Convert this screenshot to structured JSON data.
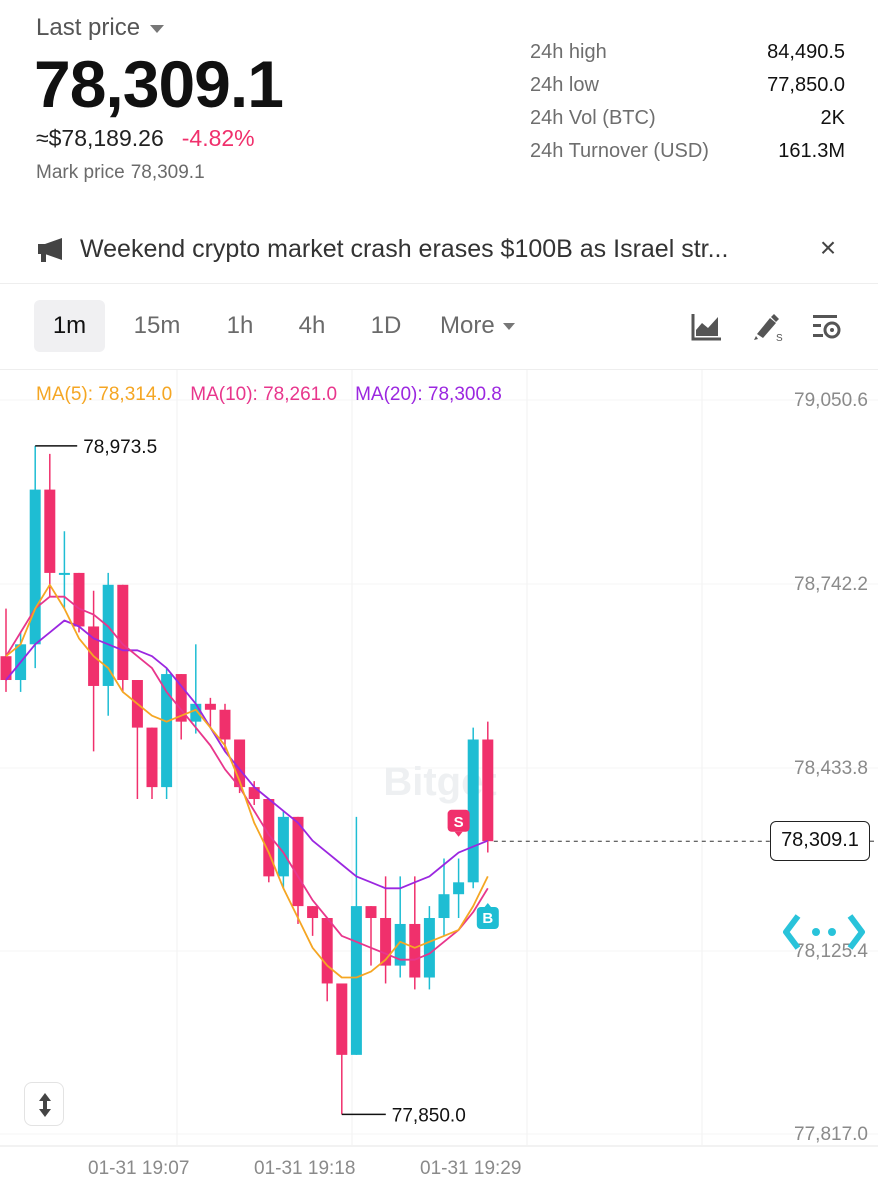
{
  "header": {
    "last_price_label": "Last price",
    "last_price": "78,309.1",
    "usd_approx": "≈$78,189.26",
    "change_pct": "-4.82%",
    "mark_price_label": "Mark price",
    "mark_price": "78,309.1"
  },
  "stats": [
    {
      "label": "24h high",
      "value": "84,490.5"
    },
    {
      "label": "24h low",
      "value": "77,850.0"
    },
    {
      "label": "24h Vol (BTC)",
      "value": "2K"
    },
    {
      "label": "24h Turnover (USD)",
      "value": "161.3M"
    }
  ],
  "news": {
    "icon": "megaphone-icon",
    "text": "Weekend crypto market crash erases $100B as Israel str...",
    "close_icon": "close-icon"
  },
  "intervals": {
    "items": [
      "1m",
      "15m",
      "1h",
      "4h",
      "1D"
    ],
    "active": "1m",
    "more_label": "More"
  },
  "tools": [
    "chart-type-icon",
    "drawing-tool-icon",
    "indicator-settings-icon"
  ],
  "ma_legend": {
    "ma5": "MA(5): 78,314.0",
    "ma10": "MA(10): 78,261.0",
    "ma20": "MA(20): 78,300.8"
  },
  "chart": {
    "high_marker": "78,973.5",
    "low_marker": "77,850.0",
    "current_price_tag": "78,309.1",
    "sell_marker": "S",
    "buy_marker": "B",
    "watermark": "Bitget",
    "y_axis_labels": [
      "79,050.6",
      "78,742.2",
      "78,433.8",
      "78,125.4",
      "77,817.0"
    ],
    "x_axis_labels": [
      "01-31 19:07",
      "01-31 19:18",
      "01-31 19:29"
    ]
  },
  "colors": {
    "up": "#1ebdd3",
    "down": "#f0306c",
    "ma5": "#f5a623",
    "ma10": "#e8368c",
    "ma20": "#9b27e0"
  },
  "chart_data": {
    "type": "candlestick",
    "ylim": [
      77817.0,
      79050.6
    ],
    "candles": [
      {
        "o": 78620,
        "h": 78700,
        "l": 78560,
        "c": 78580
      },
      {
        "o": 78580,
        "h": 78660,
        "l": 78560,
        "c": 78640
      },
      {
        "o": 78640,
        "h": 78973.5,
        "l": 78600,
        "c": 78900
      },
      {
        "o": 78900,
        "h": 78960,
        "l": 78720,
        "c": 78760
      },
      {
        "o": 78760,
        "h": 78830,
        "l": 78700,
        "c": 78760
      },
      {
        "o": 78760,
        "h": 78760,
        "l": 78660,
        "c": 78670
      },
      {
        "o": 78670,
        "h": 78730,
        "l": 78460,
        "c": 78570
      },
      {
        "o": 78570,
        "h": 78760,
        "l": 78520,
        "c": 78740
      },
      {
        "o": 78740,
        "h": 78740,
        "l": 78560,
        "c": 78580
      },
      {
        "o": 78580,
        "h": 78580,
        "l": 78380,
        "c": 78500
      },
      {
        "o": 78500,
        "h": 78500,
        "l": 78380,
        "c": 78400
      },
      {
        "o": 78400,
        "h": 78600,
        "l": 78380,
        "c": 78590
      },
      {
        "o": 78590,
        "h": 78590,
        "l": 78480,
        "c": 78510
      },
      {
        "o": 78510,
        "h": 78640,
        "l": 78490,
        "c": 78540
      },
      {
        "o": 78540,
        "h": 78550,
        "l": 78500,
        "c": 78530
      },
      {
        "o": 78530,
        "h": 78540,
        "l": 78460,
        "c": 78480
      },
      {
        "o": 78480,
        "h": 78480,
        "l": 78390,
        "c": 78400
      },
      {
        "o": 78400,
        "h": 78410,
        "l": 78370,
        "c": 78380
      },
      {
        "o": 78380,
        "h": 78380,
        "l": 78240,
        "c": 78250
      },
      {
        "o": 78250,
        "h": 78360,
        "l": 78230,
        "c": 78350
      },
      {
        "o": 78350,
        "h": 78350,
        "l": 78170,
        "c": 78200
      },
      {
        "o": 78200,
        "h": 78200,
        "l": 78150,
        "c": 78180
      },
      {
        "o": 78180,
        "h": 78180,
        "l": 78040,
        "c": 78070
      },
      {
        "o": 78070,
        "h": 78070,
        "l": 77850,
        "c": 77950
      },
      {
        "o": 77950,
        "h": 78350,
        "l": 77950,
        "c": 78200
      },
      {
        "o": 78200,
        "h": 78200,
        "l": 78100,
        "c": 78180
      },
      {
        "o": 78180,
        "h": 78250,
        "l": 78070,
        "c": 78100
      },
      {
        "o": 78100,
        "h": 78250,
        "l": 78080,
        "c": 78170
      },
      {
        "o": 78170,
        "h": 78250,
        "l": 78060,
        "c": 78080
      },
      {
        "o": 78080,
        "h": 78200,
        "l": 78060,
        "c": 78180
      },
      {
        "o": 78180,
        "h": 78280,
        "l": 78150,
        "c": 78220
      },
      {
        "o": 78220,
        "h": 78280,
        "l": 78180,
        "c": 78240
      },
      {
        "o": 78240,
        "h": 78500,
        "l": 78230,
        "c": 78480
      },
      {
        "o": 78480,
        "h": 78510,
        "l": 78290,
        "c": 78309.1
      }
    ],
    "ma5": [
      78620,
      78640,
      78700,
      78740,
      78700,
      78650,
      78620,
      78600,
      78560,
      78540,
      78520,
      78510,
      78520,
      78530,
      78500,
      78470,
      78410,
      78340,
      78290,
      78230,
      78180,
      78130,
      78100,
      78080,
      78080,
      78090,
      78110,
      78140,
      78130,
      78140,
      78150,
      78160,
      78200,
      78250
    ],
    "ma10": [
      78620,
      78660,
      78700,
      78720,
      78720,
      78700,
      78690,
      78670,
      78640,
      78620,
      78600,
      78560,
      78530,
      78500,
      78470,
      78430,
      78400,
      78360,
      78320,
      78290,
      78250,
      78210,
      78180,
      78150,
      78140,
      78130,
      78120,
      78110,
      78110,
      78120,
      78140,
      78160,
      78190,
      78230
    ],
    "ma20": [
      78580,
      78610,
      78640,
      78660,
      78680,
      78670,
      78650,
      78640,
      78630,
      78630,
      78620,
      78600,
      78570,
      78540,
      78500,
      78460,
      78430,
      78400,
      78380,
      78360,
      78340,
      78310,
      78290,
      78270,
      78250,
      78240,
      78230,
      78230,
      78240,
      78250,
      78270,
      78290,
      78300,
      78310
    ]
  }
}
